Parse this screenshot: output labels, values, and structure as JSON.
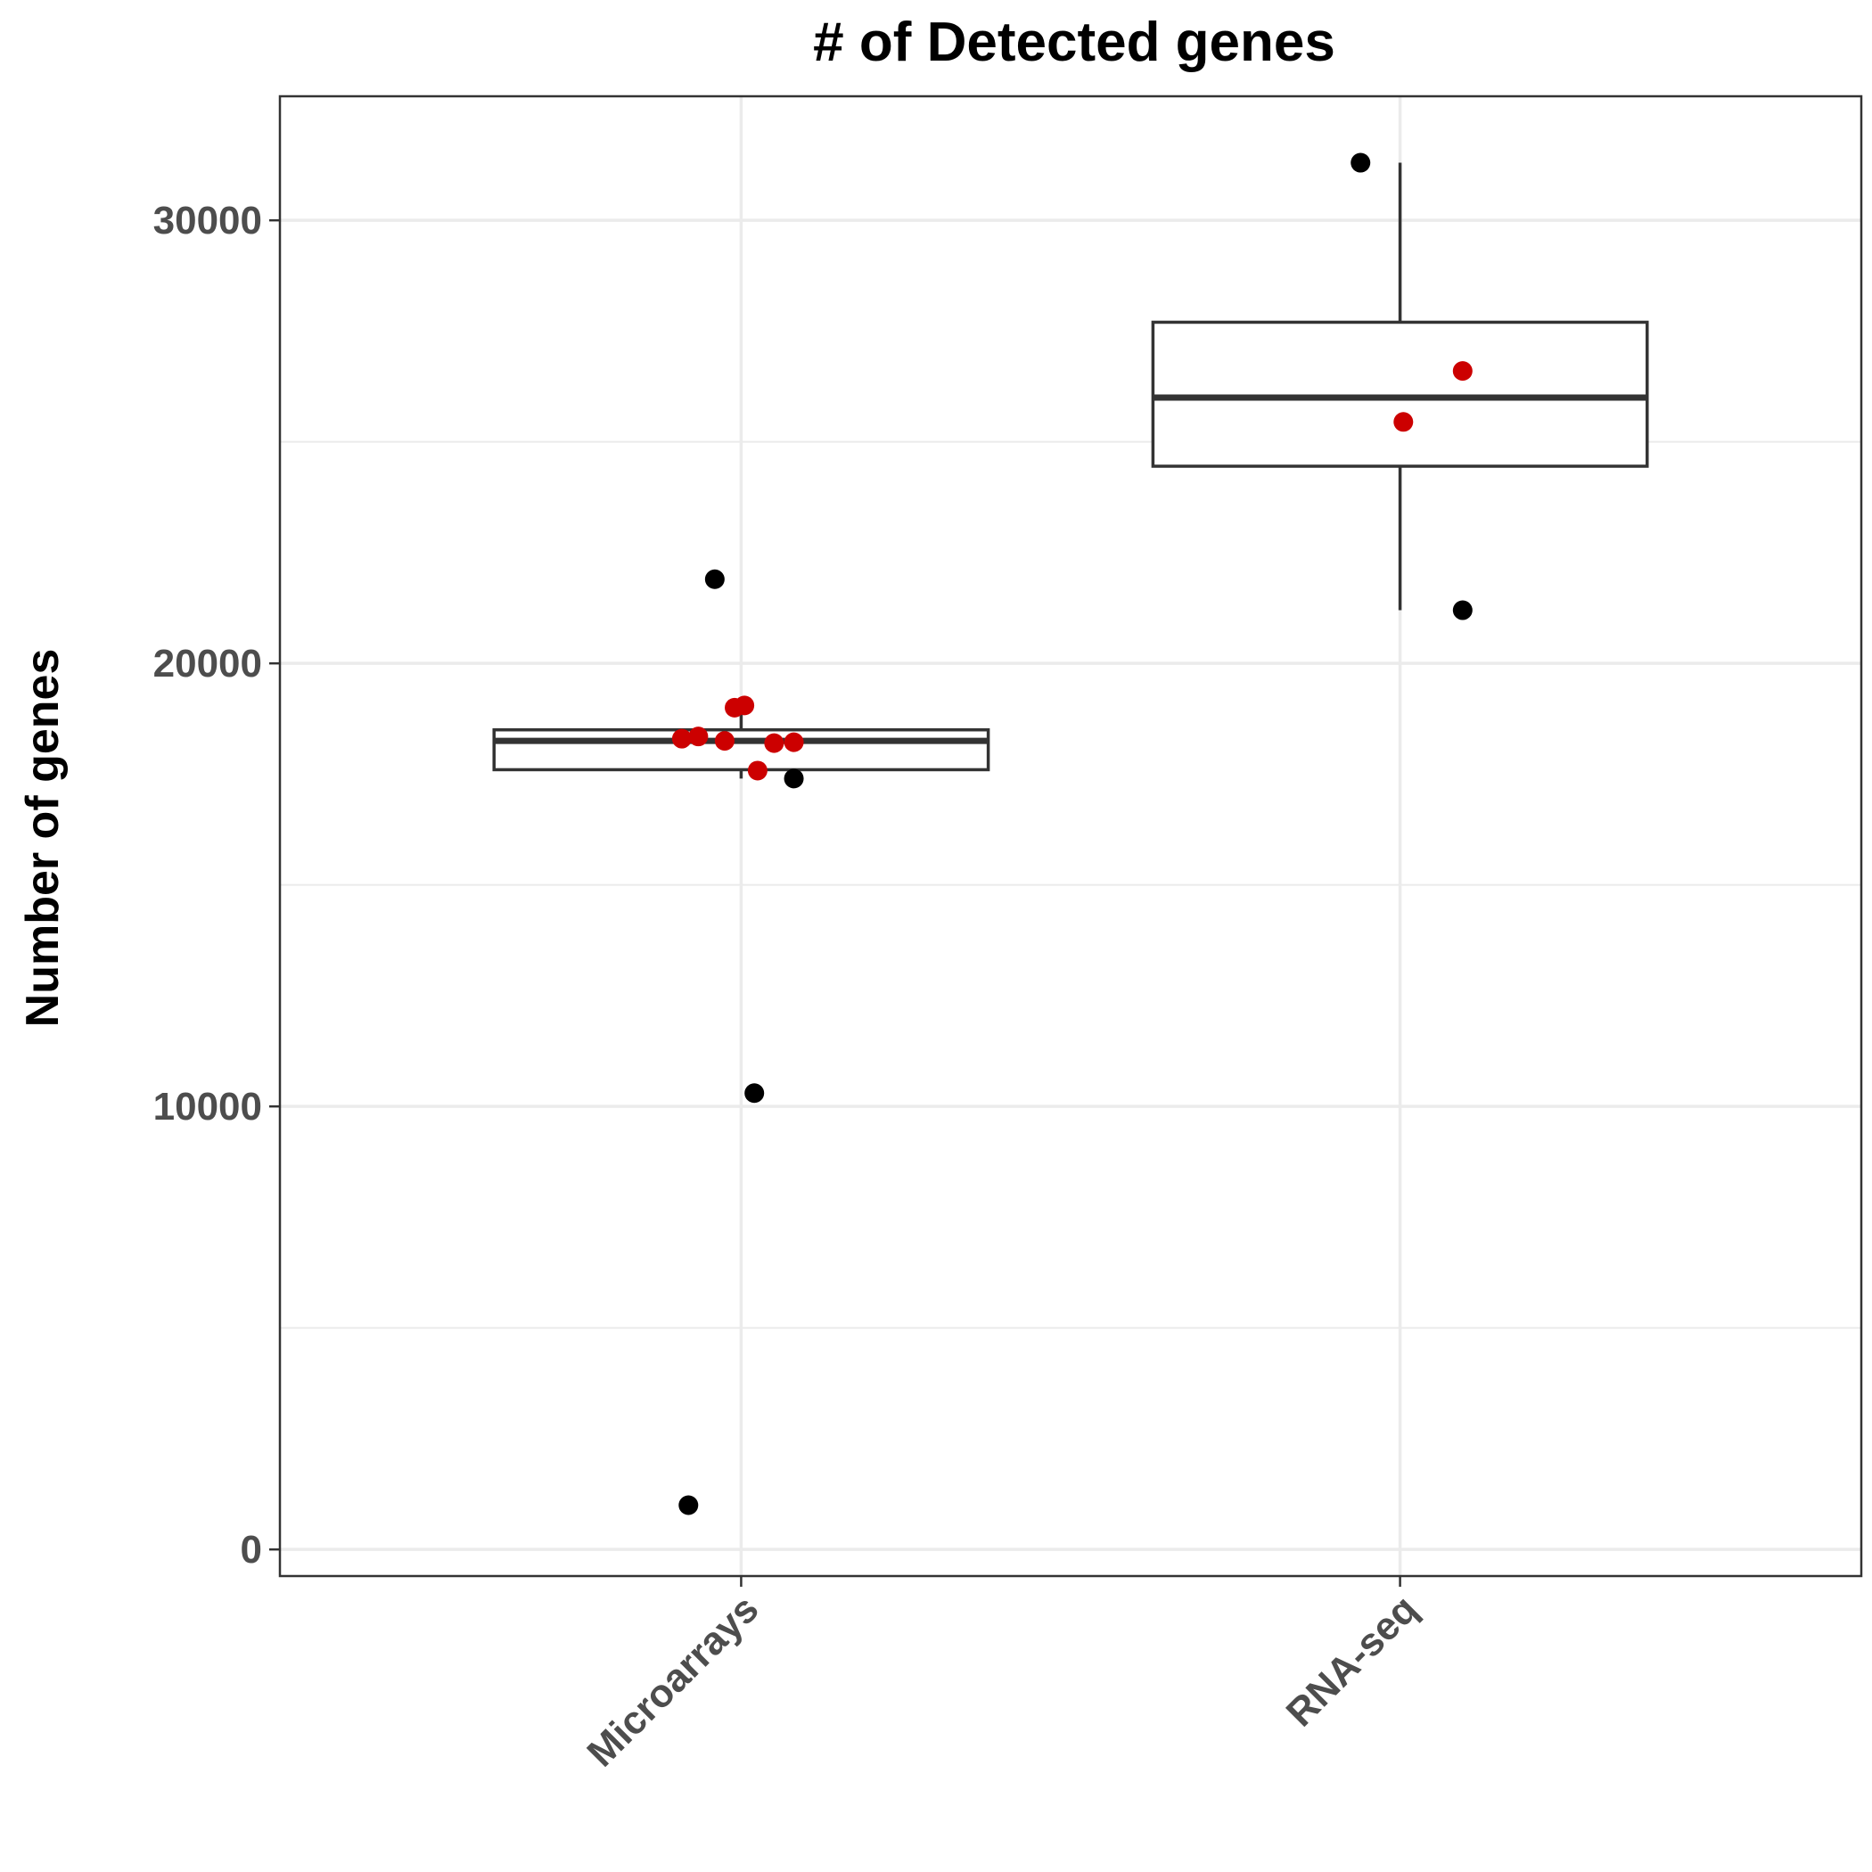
{
  "chart_data": {
    "type": "box",
    "title": "# of Detected genes",
    "xlabel": "",
    "ylabel": "Number of genes",
    "ylim": [
      -600,
      32800
    ],
    "yticks": [
      0,
      10000,
      20000,
      30000
    ],
    "ytick_labels": [
      "0",
      "10000",
      "20000",
      "30000"
    ],
    "grid": true,
    "categories": [
      "Microarrays",
      "RNA-seq"
    ],
    "boxes": [
      {
        "category": "Microarrays",
        "q1": 17600,
        "median": 18250,
        "q3": 18500,
        "whisker_low": 17400,
        "whisker_high": 18900
      },
      {
        "category": "RNA-seq",
        "q1": 24450,
        "median": 26000,
        "q3": 27700,
        "whisker_low": 21200,
        "whisker_high": 31300
      }
    ],
    "colors": {
      "highlight": "#cc0000",
      "default": "#000000",
      "box": "#333333",
      "grid": "#ebebeb"
    },
    "points": [
      {
        "category": "Microarrays",
        "jitter": -0.04,
        "y": 21900,
        "color": "black"
      },
      {
        "category": "Microarrays",
        "jitter": 0.08,
        "y": 17400,
        "color": "black"
      },
      {
        "category": "Microarrays",
        "jitter": 0.02,
        "y": 10300,
        "color": "black"
      },
      {
        "category": "Microarrays",
        "jitter": -0.08,
        "y": 1000,
        "color": "black"
      },
      {
        "category": "Microarrays",
        "jitter": -0.01,
        "y": 19000,
        "color": "red"
      },
      {
        "category": "Microarrays",
        "jitter": 0.005,
        "y": 19050,
        "color": "red"
      },
      {
        "category": "Microarrays",
        "jitter": -0.09,
        "y": 18300,
        "color": "red"
      },
      {
        "category": "Microarrays",
        "jitter": -0.065,
        "y": 18350,
        "color": "red"
      },
      {
        "category": "Microarrays",
        "jitter": -0.025,
        "y": 18250,
        "color": "red"
      },
      {
        "category": "Microarrays",
        "jitter": 0.05,
        "y": 18200,
        "color": "red"
      },
      {
        "category": "Microarrays",
        "jitter": 0.08,
        "y": 18220,
        "color": "red"
      },
      {
        "category": "Microarrays",
        "jitter": 0.025,
        "y": 17580,
        "color": "red"
      },
      {
        "category": "RNA-seq",
        "jitter": -0.06,
        "y": 31300,
        "color": "black"
      },
      {
        "category": "RNA-seq",
        "jitter": 0.095,
        "y": 21200,
        "color": "black"
      },
      {
        "category": "RNA-seq",
        "jitter": 0.095,
        "y": 26600,
        "color": "red"
      },
      {
        "category": "RNA-seq",
        "jitter": 0.005,
        "y": 25450,
        "color": "red"
      }
    ]
  }
}
